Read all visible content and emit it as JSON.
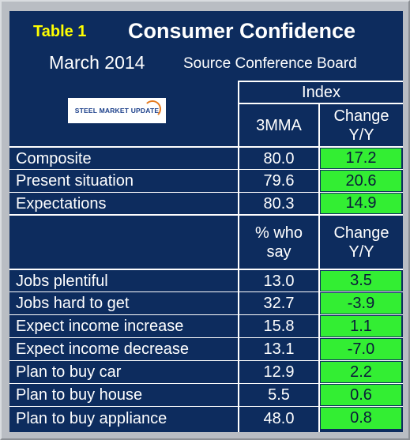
{
  "header": {
    "table_label": "Table 1",
    "title": "Consumer Confidence",
    "date": "March 2014",
    "source": "Source Conference Board",
    "logo_text": "STEEL MARKET UPDATE"
  },
  "columns": {
    "group_header": "Index",
    "col1": "3MMA",
    "col2": "Change Y/Y",
    "col1_b": "% who say",
    "col2_b": "Change Y/Y"
  },
  "section1": [
    {
      "label": "Composite",
      "value": "80.0",
      "change": "17.2"
    },
    {
      "label": "Present situation",
      "value": "79.6",
      "change": "20.6"
    },
    {
      "label": "Expectations",
      "value": "80.3",
      "change": "14.9"
    }
  ],
  "section2": [
    {
      "label": "Jobs plentiful",
      "value": "13.0",
      "change": "3.5"
    },
    {
      "label": "Jobs hard to get",
      "value": "32.7",
      "change": "-3.9"
    },
    {
      "label": "Expect income increase",
      "value": "15.8",
      "change": "1.1"
    },
    {
      "label": "Expect income decrease",
      "value": "13.1",
      "change": "-7.0"
    },
    {
      "label": "Plan to buy car",
      "value": "12.9",
      "change": "2.2"
    },
    {
      "label": "Plan to buy house",
      "value": "5.5",
      "change": "0.6"
    },
    {
      "label": "Plan to buy appliance",
      "value": "48.0",
      "change": "0.8"
    }
  ],
  "colors": {
    "panel": "#0d2c5e",
    "title_label": "#ffff00",
    "highlight": "#33ee33"
  }
}
